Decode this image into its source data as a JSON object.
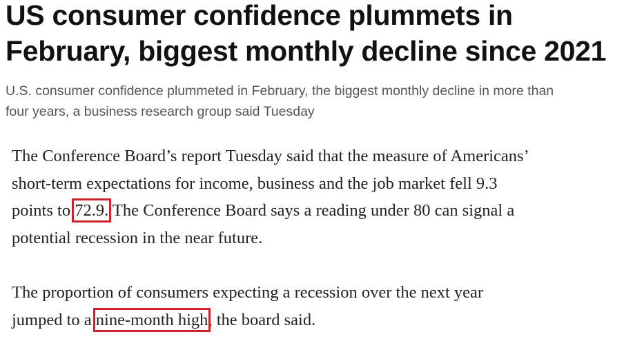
{
  "article": {
    "headline_lines": [
      "US consumer confidence plummets in",
      "February, biggest monthly decline since 2021"
    ],
    "subtitle_lines": [
      "U.S. consumer confidence plummeted in February, the biggest monthly decline in more than",
      "four years, a business research group said Tuesday"
    ],
    "paragraph1": {
      "line1": "The Conference Board’s report Tuesday said that the measure of Americans’",
      "line2": "short-term expectations for income, business and the job market fell 9.3",
      "line3_before": "points to ",
      "line3_highlight": "72.9.",
      "line3_after": " The Conference Board says a reading under 80 can signal a",
      "line4": "potential recession in the near future."
    },
    "paragraph2": {
      "line1": "The proportion of consumers expecting a recession over the next year",
      "line2_before": "jumped to a ",
      "line2_highlight": "nine-month high",
      "line2_after": ", the board said."
    },
    "highlight_color": "#d0202a"
  }
}
